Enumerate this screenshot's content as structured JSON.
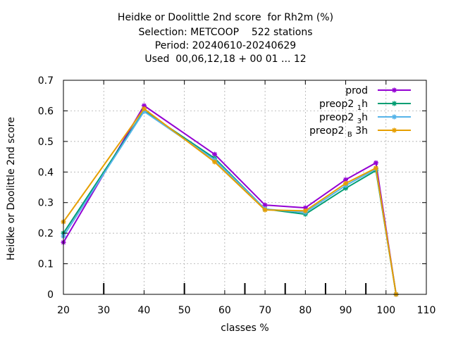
{
  "title": {
    "line1": "Heidke or Doolittle 2nd score  for Rh2m (%)",
    "line2": "Selection: METCOOP    522 stations",
    "line3": "Period: 20240610-20240629",
    "line4": "Used  00,06,12,18 + 00 01 ... 12"
  },
  "chart_data": {
    "type": "line",
    "title": "Heidke or Doolittle 2nd score  for Rh2m (%)",
    "xlabel": "classes %",
    "ylabel": "Heidke or Doolittle 2nd score",
    "xlim": [
      20,
      110
    ],
    "ylim": [
      0,
      0.7
    ],
    "xticks": [
      20,
      30,
      40,
      50,
      60,
      70,
      80,
      90,
      100,
      110
    ],
    "yticks": [
      0,
      0.1,
      0.2,
      0.3,
      0.4,
      0.5,
      0.6,
      0.7
    ],
    "x_tick_labels": [
      "20",
      "30",
      "40",
      "50",
      "60",
      "70",
      "80",
      "90",
      "100",
      "110"
    ],
    "y_tick_labels": [
      "0",
      "0.1",
      "0.2",
      "0.3",
      "0.4",
      "0.5",
      "0.6",
      "0.7"
    ],
    "grid": true,
    "legend_position": "top-right",
    "class_marks": [
      30,
      50,
      65,
      75,
      85,
      95
    ],
    "x": [
      20,
      40,
      57.5,
      70,
      80,
      90,
      97.5,
      102.5
    ],
    "series": [
      {
        "name": "prod",
        "name_main": "prod",
        "name_sub": "",
        "name_suffix": "",
        "color": "#9400d3",
        "values": [
          0.17,
          0.617,
          0.458,
          0.292,
          0.283,
          0.375,
          0.43,
          0.0
        ]
      },
      {
        "name": "preop2 1 h",
        "name_main": "preop2 ",
        "name_sub": "1",
        "name_suffix": "h",
        "color": "#009e73",
        "values": [
          0.2,
          0.6,
          0.445,
          0.279,
          0.262,
          0.347,
          0.405,
          0.0
        ]
      },
      {
        "name": "preop2 3 h",
        "name_main": "preop2 ",
        "name_sub": "3",
        "name_suffix": "h",
        "color": "#56b4e9",
        "values": [
          0.19,
          0.598,
          0.44,
          0.279,
          0.268,
          0.356,
          0.41,
          0.0
        ]
      },
      {
        "name": "preop2 B 3h",
        "name_main": "preop2 ",
        "name_sub": "B",
        "name_suffix": " 3h",
        "color": "#e69f00",
        "values": [
          0.237,
          0.607,
          0.433,
          0.276,
          0.273,
          0.363,
          0.413,
          0.0
        ]
      }
    ]
  }
}
